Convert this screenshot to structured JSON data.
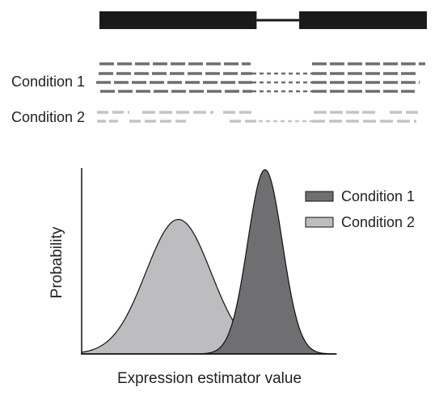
{
  "gene_model": {
    "exons": [
      {
        "start": 0.0,
        "end": 0.48
      },
      {
        "start": 0.61,
        "end": 1.0
      }
    ],
    "intron": {
      "start": 0.48,
      "end": 0.61
    }
  },
  "reads": {
    "condition_labels": [
      "Condition 1",
      "Condition 2"
    ],
    "condition_1": {
      "color": "#6e6e6e",
      "read_rows": 4,
      "junction_style": "dotted"
    },
    "condition_2": {
      "color": "#c4c4c4",
      "read_rows": 2,
      "junction_style": "dotted"
    }
  },
  "chart_data": {
    "type": "area",
    "title": "",
    "xlabel": "Expression estimator value",
    "ylabel": "Probability",
    "xlim": [
      0,
      10
    ],
    "ylim": [
      0,
      1
    ],
    "ticks": "none",
    "legend": {
      "placement": "top-right",
      "entries": [
        "Condition 1",
        "Condition 2"
      ]
    },
    "series": [
      {
        "name": "Condition 1",
        "color": "#6f6f71",
        "distribution": "normal",
        "mean": 7.2,
        "sd": 0.68,
        "peak": 1.0
      },
      {
        "name": "Condition 2",
        "color": "#bdbdbf",
        "distribution": "normal",
        "mean": 3.8,
        "sd": 1.28,
        "peak": 0.73
      }
    ]
  }
}
